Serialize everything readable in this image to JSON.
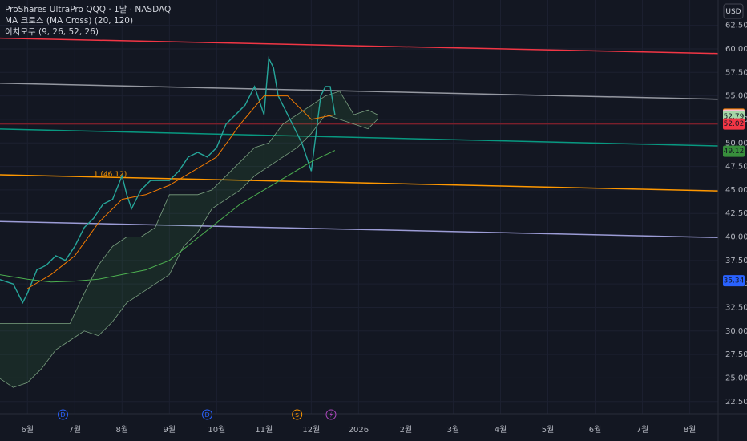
{
  "chart_data": {
    "type": "line",
    "title": "ProShares UltraPro QQQ · 1날 · NASDAQ",
    "indicators": [
      "MA 크로스 (MA Cross) (20, 120)",
      "이치모쿠 (9, 26, 52, 26)"
    ],
    "currency": "USD",
    "xlim": [
      -0.58,
      14.6
    ],
    "xticks": [
      {
        "value": 0,
        "label": "6월"
      },
      {
        "value": 1,
        "label": "7월"
      },
      {
        "value": 2,
        "label": "8월"
      },
      {
        "value": 3,
        "label": "9월"
      },
      {
        "value": 4,
        "label": "10월"
      },
      {
        "value": 5,
        "label": "11월"
      },
      {
        "value": 6,
        "label": "12월"
      },
      {
        "value": 7,
        "label": "2026"
      },
      {
        "value": 8,
        "label": "2월"
      },
      {
        "value": 9,
        "label": "3월"
      },
      {
        "value": 10,
        "label": "4월"
      },
      {
        "value": 11,
        "label": "5월"
      },
      {
        "value": 12,
        "label": "6월"
      },
      {
        "value": 13,
        "label": "7월"
      },
      {
        "value": 14,
        "label": "8월"
      }
    ],
    "ylim": [
      21.2,
      65.2
    ],
    "yticks": [
      {
        "value": 22.5,
        "label": "22.50"
      },
      {
        "value": 25,
        "label": "25.00"
      },
      {
        "value": 27.5,
        "label": "27.50"
      },
      {
        "value": 30,
        "label": "30.00"
      },
      {
        "value": 32.5,
        "label": "32.50"
      },
      {
        "value": 35,
        "label": "35.00"
      },
      {
        "value": 37.5,
        "label": "37.50"
      },
      {
        "value": 40,
        "label": "40.00"
      },
      {
        "value": 42.5,
        "label": "42.50"
      },
      {
        "value": 45,
        "label": "45.00"
      },
      {
        "value": 47.5,
        "label": "47.50"
      },
      {
        "value": 50,
        "label": "50.00"
      },
      {
        "value": 52.5,
        "label": "52.50"
      },
      {
        "value": 55,
        "label": "55.00"
      },
      {
        "value": 57.5,
        "label": "57.50"
      },
      {
        "value": 60,
        "label": "60.00"
      },
      {
        "value": 62.5,
        "label": "62.50"
      }
    ],
    "grid": true,
    "series": [
      {
        "color": "#26a69a",
        "width": 1.4,
        "x": [
          -0.6,
          -0.3,
          -0.1,
          0,
          0.2,
          0.4,
          0.6,
          0.8,
          1.0,
          1.2,
          1.4,
          1.6,
          1.8,
          2.0,
          2.1,
          2.2,
          2.4,
          2.6,
          2.8,
          3.0,
          3.2,
          3.4,
          3.6,
          3.8,
          4.0,
          4.2,
          4.4,
          4.6,
          4.8,
          5.0,
          5.1,
          5.2,
          5.3,
          5.4,
          5.6,
          5.8,
          6.0,
          6.1,
          6.2,
          6.3,
          6.4,
          6.5
        ],
        "values": [
          35.5,
          35,
          33,
          34,
          36.5,
          37,
          38,
          37.5,
          39,
          41,
          42,
          43.5,
          44,
          46.5,
          44.5,
          43,
          45,
          46,
          46,
          46,
          47,
          48.5,
          49,
          48.5,
          49.5,
          52,
          53,
          54,
          56,
          53,
          59,
          58,
          55,
          54,
          52,
          50,
          47,
          51,
          55,
          56,
          56,
          53
        ]
      },
      {
        "color": "#f57c00",
        "width": 1,
        "x": [
          0,
          0.5,
          1,
          1.5,
          2,
          2.5,
          3,
          3.5,
          4,
          4.5,
          5,
          5.5,
          6,
          6.5
        ],
        "values": [
          34.5,
          36,
          38,
          41.5,
          44,
          44.5,
          45.5,
          47,
          48.5,
          52,
          55,
          55,
          52.5,
          53
        ]
      },
      {
        "color": "#4caf50",
        "width": 1,
        "x": [
          -0.6,
          0,
          0.5,
          1,
          1.5,
          2,
          2.5,
          3,
          3.5,
          4,
          4.5,
          5,
          5.5,
          6,
          6.5
        ],
        "values": [
          36,
          35.5,
          35.2,
          35.3,
          35.5,
          36,
          36.5,
          37.5,
          39.5,
          41.5,
          43.5,
          45,
          46.5,
          48,
          49.2
        ]
      }
    ],
    "cloud": {
      "color": "#a5d6a7",
      "fill": "rgba(76,175,80,0.12)",
      "x": [
        -0.6,
        -0.3,
        0,
        0.3,
        0.6,
        0.9,
        1.2,
        1.5,
        1.8,
        2.1,
        2.4,
        2.7,
        3.0,
        3.3,
        3.6,
        3.9,
        4.2,
        4.5,
        4.8,
        5.1,
        5.4,
        5.7,
        6.0,
        6.3,
        6.6,
        6.9,
        7.2,
        7.4
      ],
      "upper": [
        30.8,
        30.8,
        30.8,
        30.8,
        30.8,
        30.8,
        34,
        37,
        39,
        40,
        40,
        41,
        44.5,
        44.5,
        44.5,
        45,
        46.5,
        48,
        49.5,
        50,
        52,
        53,
        54,
        55,
        55.5,
        53,
        53.5,
        53
      ],
      "lower": [
        25,
        24,
        24.5,
        26,
        28,
        29,
        30,
        29.5,
        31,
        33,
        34,
        35,
        36,
        39,
        40.5,
        43,
        44,
        45,
        46.5,
        47.5,
        48.5,
        49.5,
        51,
        53,
        52.5,
        52,
        51.5,
        52.5
      ]
    },
    "trend_lines": [
      {
        "color": "#f23645",
        "x": [
          -0.58,
          14.6
        ],
        "values": [
          61.14,
          59.51
        ]
      },
      {
        "color": "#9598a1",
        "x": [
          -0.58,
          14.6
        ],
        "values": [
          56.35,
          54.64
        ]
      },
      {
        "color": "#089981",
        "x": [
          -0.58,
          14.6
        ],
        "values": [
          51.48,
          49.68
        ]
      },
      {
        "color": "#ff9800",
        "x": [
          -0.58,
          14.6
        ],
        "values": [
          46.61,
          44.9
        ]
      },
      {
        "color": "#9c9cd6",
        "x": [
          -0.58,
          14.6
        ],
        "values": [
          41.65,
          39.94
        ]
      },
      {
        "color": "#7a1f2b",
        "x": [
          -0.58,
          14.6
        ],
        "values": [
          52.02,
          52.02
        ]
      }
    ],
    "annotation": {
      "text": "1 (46.12)",
      "x": 1.4,
      "y": 46.4
    },
    "price_labels": [
      {
        "value": 53.06,
        "color": "#f57c00"
      },
      {
        "value": 52.96,
        "color": "#f8bbd0"
      },
      {
        "value": 52.79,
        "color": "#a5d6a7"
      },
      {
        "value": 52.02,
        "color": "#f23645"
      },
      {
        "value": 49.12,
        "color": "#388e3c"
      },
      {
        "value": 35.34,
        "color": "#2962ff"
      }
    ],
    "events": [
      {
        "x": 0.75,
        "text": "D",
        "color": "#2962ff"
      },
      {
        "x": 3.8,
        "text": "D",
        "color": "#2962ff"
      },
      {
        "x": 5.7,
        "text": "$",
        "color": "#ff9800"
      }
    ]
  }
}
